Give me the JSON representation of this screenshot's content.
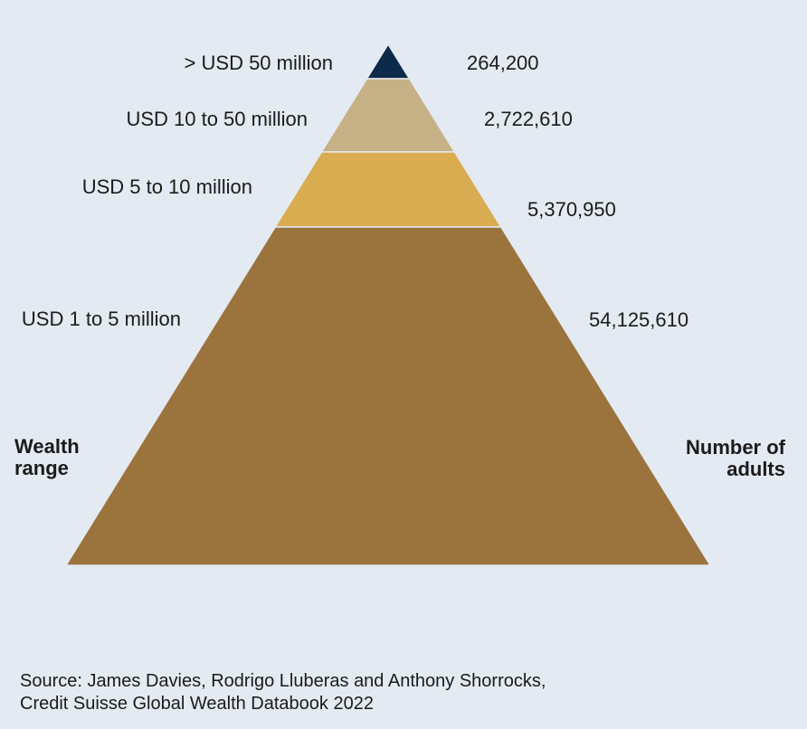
{
  "chart_data": {
    "type": "pyramid",
    "left_title_line1": "Wealth",
    "left_title_line2": "range",
    "right_title_line1": "Number of",
    "right_title_line2": "adults",
    "tiers": [
      {
        "range": "> USD 50 million",
        "adults": "264,200",
        "color": "#0d2a4a"
      },
      {
        "range": "USD 10 to 50 million",
        "adults": "2,722,610",
        "color": "#c6b085"
      },
      {
        "range": "USD 5 to 10 million",
        "adults": "5,370,950",
        "color": "#d9ac52"
      },
      {
        "range": "USD 1 to 5 million",
        "adults": "54,125,610",
        "color": "#9b733d"
      }
    ]
  },
  "source_line1": "Source: James Davies, Rodrigo Lluberas and Anthony Shorrocks,",
  "source_line2": "Credit Suisse Global Wealth Databook 2022"
}
